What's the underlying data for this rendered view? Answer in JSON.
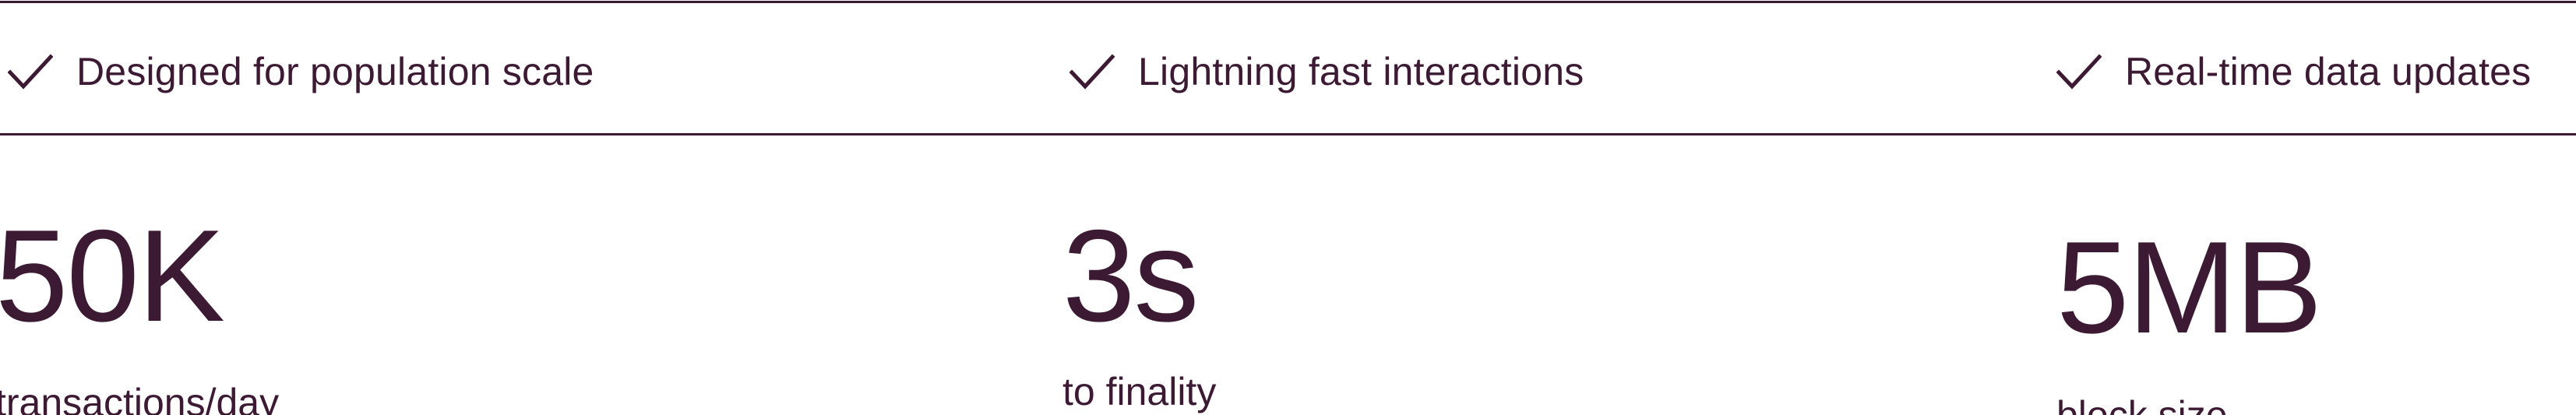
{
  "features": [
    {
      "icon": "check-icon",
      "label": "Designed for population scale"
    },
    {
      "icon": "check-icon",
      "label": "Lightning fast interactions"
    },
    {
      "icon": "check-icon",
      "label": "Real-time data updates"
    }
  ],
  "stats": [
    {
      "value": "50K",
      "caption": "transactions/day"
    },
    {
      "value": "3s",
      "caption": "to finality"
    },
    {
      "value": "5MB",
      "caption": "block size"
    }
  ],
  "colors": {
    "text": "#3d1a33",
    "rule": "#3d1a33",
    "background": "#ffffff"
  }
}
